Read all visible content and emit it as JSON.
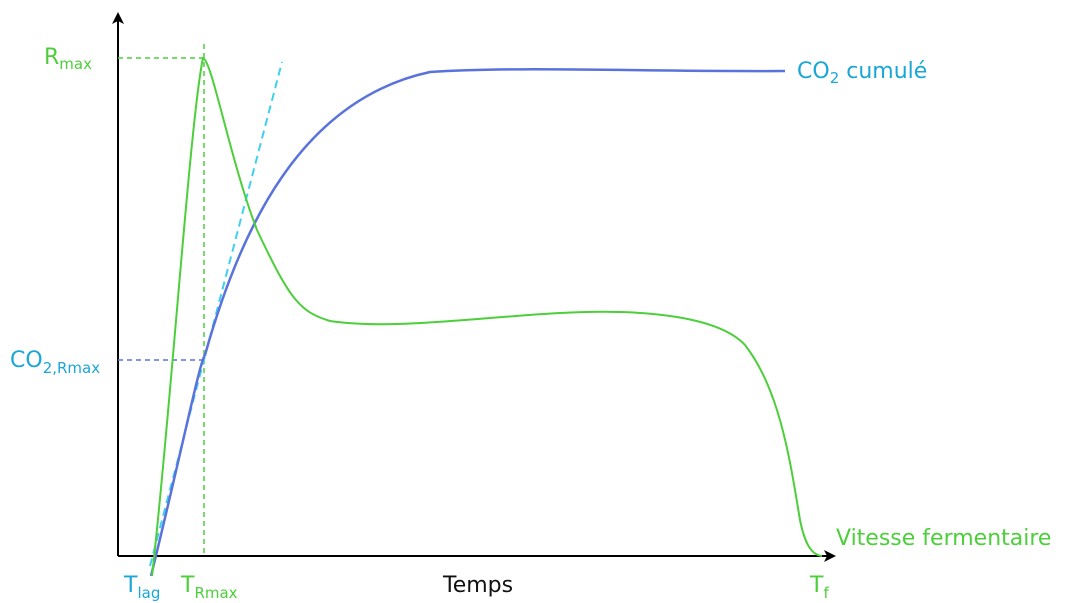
{
  "colors": {
    "growth_curve": "#4ccf3a",
    "co2_curve": "#5a73dc",
    "tangent": "#3fd0f0",
    "axis": "#000000",
    "co2_label": "#1aa7d8"
  },
  "labels": {
    "rmax_main": "R",
    "rmax_sub": "max",
    "co2_rmax_main": "CO",
    "co2_rmax_sub": "2,Rmax",
    "co2_cumule_a": "CO",
    "co2_cumule_sub": "2",
    "co2_cumule_b": " cumulé",
    "vitesse": "Vitesse fermentaire",
    "tlag_main": "T",
    "tlag_sub": "lag",
    "trmax_main": "T",
    "trmax_sub": "Rmax",
    "temps": "Temps",
    "tf_main": "T",
    "tf_sub": "f"
  }
}
